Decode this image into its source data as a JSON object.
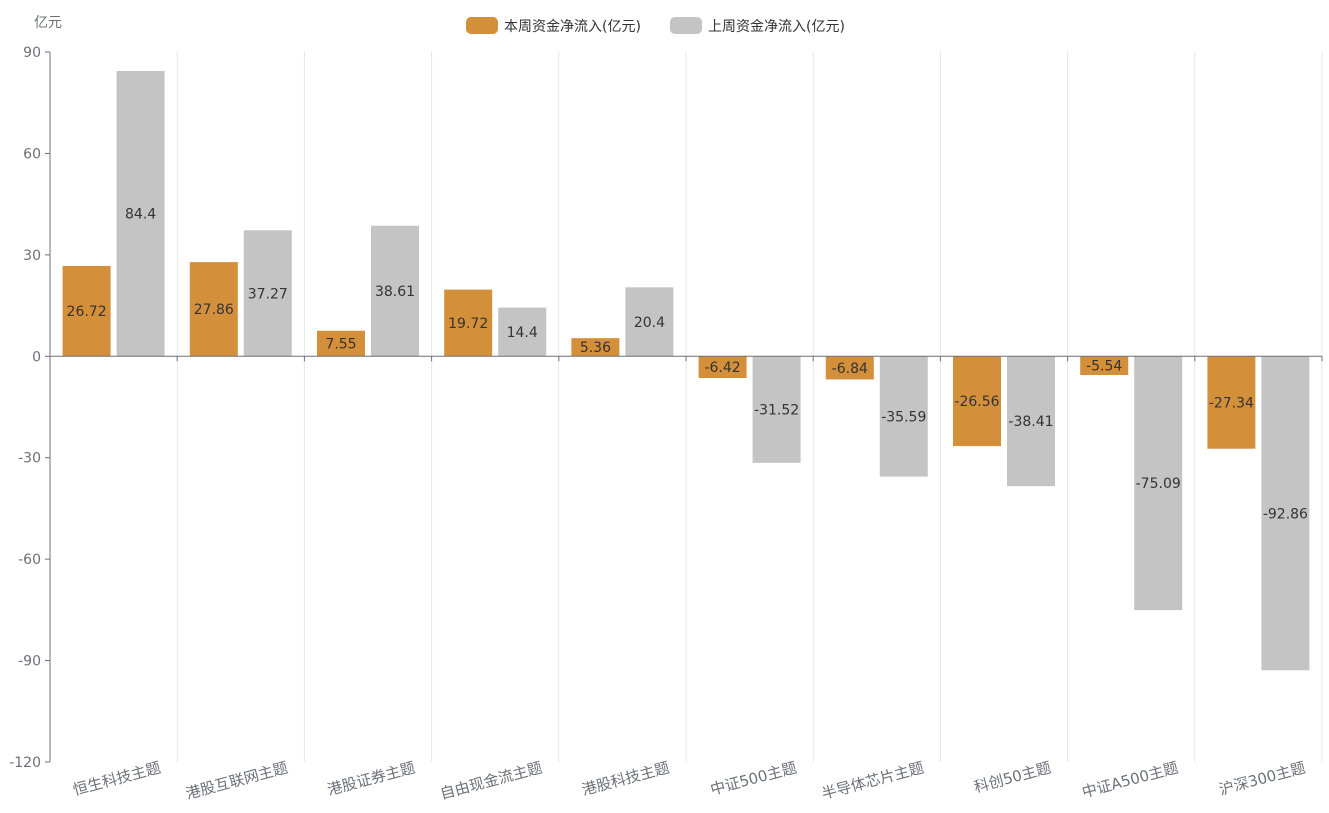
{
  "chart_data": {
    "type": "bar",
    "unit_label": "亿元",
    "categories": [
      "恒生科技主题",
      "港股互联网主题",
      "港股证券主题",
      "自由现金流主题",
      "港股科技主题",
      "中证500主题",
      "半导体芯片主题",
      "科创50主题",
      "中证A500主题",
      "沪深300主题"
    ],
    "series": [
      {
        "name": "本周资金净流入(亿元)",
        "color": "#d48f3a",
        "values": [
          26.72,
          27.86,
          7.55,
          19.72,
          5.36,
          -6.42,
          -6.84,
          -26.56,
          -5.54,
          -27.34
        ]
      },
      {
        "name": "上周资金净流入(亿元)",
        "color": "#c4c4c4",
        "values": [
          84.4,
          37.27,
          38.61,
          14.4,
          20.4,
          -31.52,
          -35.59,
          -38.41,
          -75.09,
          -92.86
        ]
      }
    ],
    "ylim": [
      -120,
      90
    ],
    "yticks": [
      90,
      60,
      30,
      0,
      -30,
      -60,
      -90,
      -120
    ],
    "legend_position": "top-center",
    "grid": "vertical category separators"
  }
}
